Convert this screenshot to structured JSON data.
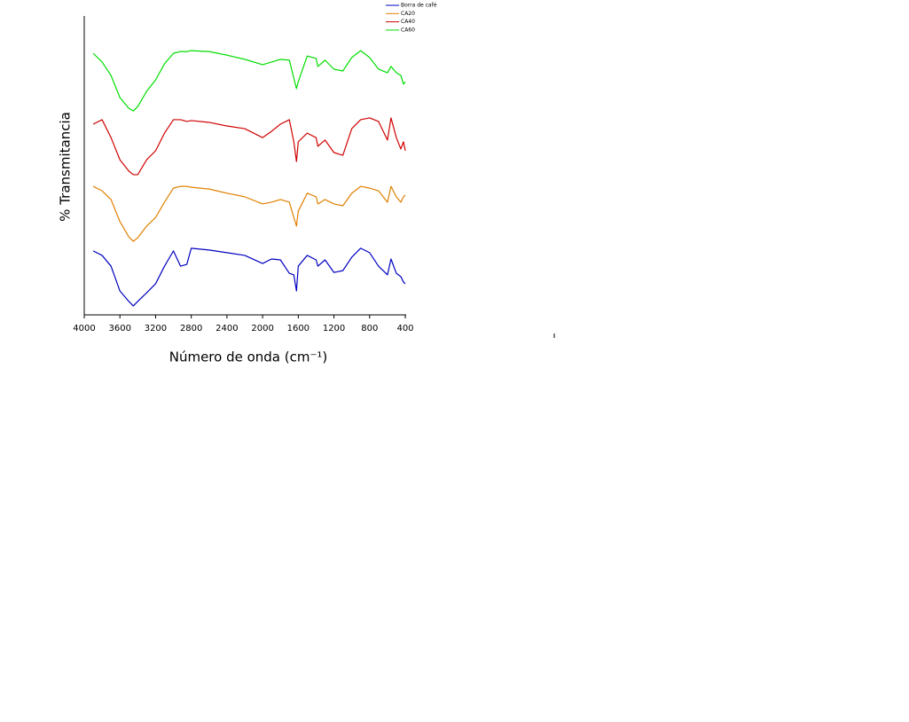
{
  "chart_data": {
    "type": "line",
    "y_label": "% Transmitancia",
    "x_label": "Número de onda  (cm⁻¹)",
    "xlim": [
      4000,
      400
    ],
    "ylim": [
      0,
      100
    ],
    "xticks": [
      4000,
      3600,
      3200,
      2800,
      2400,
      2000,
      1600,
      1200,
      800,
      400
    ],
    "legend": "upper right",
    "x": [
      3900,
      3800,
      3700,
      3600,
      3500,
      3450,
      3400,
      3300,
      3200,
      3100,
      3000,
      2920,
      2850,
      2800,
      2600,
      2400,
      2200,
      2000,
      1900,
      1800,
      1700,
      1650,
      1620,
      1600,
      1500,
      1400,
      1380,
      1300,
      1200,
      1100,
      1000,
      900,
      800,
      700,
      600,
      560,
      500,
      450,
      420,
      400
    ],
    "series": [
      {
        "name": "Borra de café",
        "color": "#0000c0",
        "values": [
          21.4,
          19.9,
          16.3,
          8.0,
          4.5,
          3.0,
          4.5,
          7.4,
          10.4,
          16.3,
          21.4,
          16.3,
          16.9,
          22.3,
          21.7,
          20.8,
          19.9,
          17.2,
          18.7,
          18.4,
          13.9,
          13.4,
          8.0,
          16.3,
          19.9,
          18.4,
          16.3,
          18.4,
          14.2,
          14.8,
          19.3,
          22.3,
          20.8,
          16.3,
          13.4,
          18.7,
          13.9,
          12.8,
          11.0,
          10.4
        ]
      },
      {
        "name": "CA20",
        "color": "#e08000",
        "values": [
          43.0,
          41.5,
          38.6,
          31.2,
          26.1,
          24.6,
          25.8,
          29.7,
          32.6,
          37.7,
          42.4,
          43.0,
          43.0,
          42.7,
          42.1,
          40.7,
          39.5,
          37.1,
          37.7,
          38.6,
          37.7,
          32.6,
          29.7,
          34.7,
          40.7,
          39.5,
          37.1,
          38.6,
          37.1,
          36.5,
          40.7,
          43.0,
          42.4,
          41.5,
          37.7,
          43.0,
          39.5,
          37.7,
          39.5,
          40.1
        ]
      },
      {
        "name": "CA40",
        "color": "#d00000",
        "values": [
          63.8,
          65.3,
          59.3,
          51.9,
          48.1,
          46.9,
          46.9,
          51.9,
          54.9,
          60.8,
          65.3,
          65.3,
          64.7,
          65.0,
          64.4,
          63.2,
          62.3,
          59.3,
          61.4,
          63.8,
          65.3,
          57.9,
          51.3,
          57.9,
          60.8,
          59.3,
          56.4,
          58.5,
          54.3,
          53.4,
          62.3,
          65.3,
          65.9,
          64.7,
          58.5,
          65.9,
          59.3,
          55.5,
          57.9,
          54.9
        ]
      },
      {
        "name": "CA60",
        "color": "#00dd00",
        "values": [
          87.5,
          84.6,
          80.1,
          72.7,
          69.1,
          68.2,
          69.7,
          74.8,
          78.6,
          84.0,
          87.5,
          88.1,
          88.1,
          88.4,
          88.1,
          86.9,
          85.5,
          83.7,
          84.6,
          85.5,
          85.2,
          79.2,
          75.7,
          78.0,
          86.6,
          85.8,
          83.1,
          85.2,
          82.2,
          81.6,
          86.1,
          88.4,
          86.1,
          82.2,
          81.0,
          83.1,
          81.0,
          80.1,
          77.2,
          78.0
        ]
      }
    ]
  }
}
